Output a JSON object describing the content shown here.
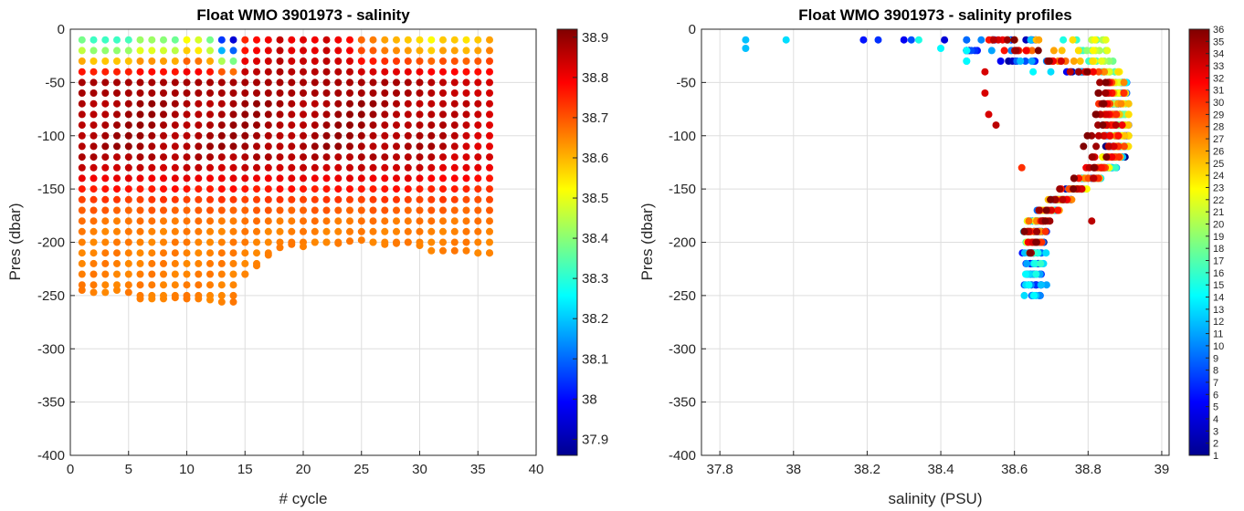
{
  "chart_data": [
    {
      "type": "scatter",
      "title": "Float WMO 3901973 - salinity",
      "xlabel": "# cycle",
      "ylabel": "Pres (dbar)",
      "xlim": [
        0,
        40
      ],
      "ylim": [
        -400,
        0
      ],
      "xticks": [
        "0",
        "5",
        "10",
        "15",
        "20",
        "25",
        "30",
        "35",
        "40"
      ],
      "yticks": [
        "0",
        "-50",
        "-100",
        "-150",
        "-200",
        "-250",
        "-300",
        "-350",
        "-400"
      ],
      "grid": true,
      "colorbar": {
        "colormap": "jet",
        "range": [
          37.86,
          38.92
        ],
        "ticks": [
          "37.9",
          "38",
          "38.1",
          "38.2",
          "38.3",
          "38.4",
          "38.5",
          "38.6",
          "38.7",
          "38.8",
          "38.9"
        ]
      },
      "cycles": [
        1,
        2,
        3,
        4,
        5,
        6,
        7,
        8,
        9,
        10,
        11,
        12,
        13,
        14,
        15,
        16,
        17,
        18,
        19,
        20,
        21,
        22,
        23,
        24,
        25,
        26,
        27,
        28,
        29,
        30,
        31,
        32,
        33,
        34,
        35,
        36
      ],
      "max_depth_dbar": [
        245,
        247,
        247,
        245,
        247,
        253,
        253,
        253,
        252,
        253,
        253,
        254,
        256,
        256,
        230,
        222,
        212,
        205,
        202,
        204,
        200,
        200,
        201,
        199,
        198,
        200,
        202,
        201,
        200,
        203,
        208,
        208,
        208,
        208,
        210,
        210
      ],
      "surface_salinity": [
        38.38,
        38.32,
        38.32,
        38.32,
        38.33,
        38.42,
        38.42,
        38.4,
        38.37,
        38.52,
        38.48,
        38.38,
        38.05,
        37.95,
        38.75,
        38.78,
        38.8,
        38.85,
        38.8,
        38.82,
        38.8,
        38.84,
        38.8,
        38.78,
        38.68,
        38.66,
        38.62,
        38.6,
        38.58,
        38.56,
        38.52,
        38.58,
        38.58,
        38.55,
        38.58,
        38.62
      ]
    },
    {
      "type": "scatter",
      "title": "Float WMO 3901973 - salinity profiles",
      "xlabel": "salinity (PSU)",
      "ylabel": "Pres (dbar)",
      "xlim": [
        37.75,
        39.02
      ],
      "ylim": [
        -400,
        0
      ],
      "xticks": [
        "37.8",
        "38",
        "38.2",
        "38.4",
        "38.6",
        "38.8",
        "39"
      ],
      "yticks": [
        "0",
        "-50",
        "-100",
        "-150",
        "-200",
        "-250",
        "-300",
        "-350",
        "-400"
      ],
      "grid": true,
      "colorbar": {
        "colormap": "jet",
        "range": [
          1,
          36
        ],
        "ticks": [
          "1",
          "2",
          "3",
          "4",
          "5",
          "6",
          "7",
          "8",
          "9",
          "10",
          "11",
          "12",
          "13",
          "14",
          "15",
          "16",
          "17",
          "18",
          "19",
          "20",
          "21",
          "22",
          "23",
          "24",
          "25",
          "26",
          "27",
          "28",
          "29",
          "30",
          "31",
          "32",
          "33",
          "34",
          "35",
          "36"
        ]
      },
      "outliers": [
        {
          "cycle": 12,
          "salinity": 37.87,
          "pressure": -10
        },
        {
          "cycle": 12,
          "salinity": 37.87,
          "pressure": -18
        },
        {
          "cycle": 13,
          "salinity": 37.98,
          "pressure": -10
        },
        {
          "cycle": 6,
          "salinity": 38.19,
          "pressure": -10
        },
        {
          "cycle": 7,
          "salinity": 38.23,
          "pressure": -10
        },
        {
          "cycle": 5,
          "salinity": 38.3,
          "pressure": -10
        },
        {
          "cycle": 8,
          "salinity": 38.32,
          "pressure": -10
        },
        {
          "cycle": 15,
          "salinity": 38.34,
          "pressure": -10
        },
        {
          "cycle": 4,
          "salinity": 38.41,
          "pressure": -10
        },
        {
          "cycle": 14,
          "salinity": 38.4,
          "pressure": -18
        },
        {
          "cycle": 9,
          "salinity": 38.47,
          "pressure": -10
        },
        {
          "cycle": 33,
          "salinity": 38.52,
          "pressure": -40
        },
        {
          "cycle": 33,
          "salinity": 38.52,
          "pressure": -60
        },
        {
          "cycle": 33,
          "salinity": 38.53,
          "pressure": -80
        },
        {
          "cycle": 34,
          "salinity": 38.55,
          "pressure": -90
        },
        {
          "cycle": 30,
          "salinity": 38.62,
          "pressure": -130
        },
        {
          "cycle": 34,
          "salinity": 38.81,
          "pressure": -180
        }
      ]
    }
  ]
}
